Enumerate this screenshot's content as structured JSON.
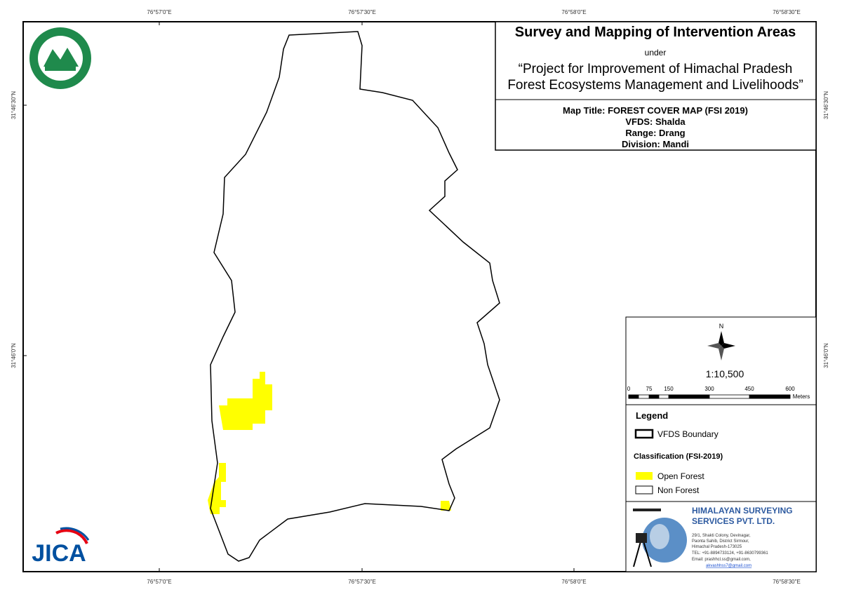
{
  "graticule": {
    "top": [
      "76°57'0\"E",
      "76°57'30\"E",
      "76°58'0\"E",
      "76°58'30\"E"
    ],
    "bottom": [
      "76°57'0\"E",
      "76°57'30\"E",
      "76°58'0\"E",
      "76°58'30\"E"
    ],
    "left": [
      "31°46'30\"N",
      "31°46'0\"N"
    ],
    "right": [
      "31°46'30\"N",
      "31°46'0\"N"
    ]
  },
  "header": {
    "title": "Survey and Mapping of Intervention Areas",
    "under": "under",
    "project": [
      "“Project for Improvement of Himachal Pradesh",
      "Forest Ecosystems Management and Livelihoods”"
    ]
  },
  "map_info": {
    "map_title": "Map Title: FOREST COVER MAP (FSI 2019)",
    "vfds": "VFDS: Shalda",
    "range": "Range: Drang",
    "division": "Division: Mandi"
  },
  "north": "N",
  "scale": "1:10,500",
  "scale_bar": {
    "ticks": [
      "0",
      "75",
      "150",
      "300",
      "450",
      "600"
    ],
    "unit": "Meters"
  },
  "legend": {
    "title": "Legend",
    "boundary": "VFDS Boundary",
    "classification": "Classification (FSI-2019)",
    "items": [
      "Open Forest",
      "Non Forest"
    ]
  },
  "logos": {
    "jica": "JICA"
  },
  "company": {
    "name": [
      "HIMALAYAN SURVEYING",
      "SERVICES PVT. LTD."
    ],
    "address": [
      "29/1, Shakti Colony, Devinagar,",
      "Paonta Sahib, District Sirmour,",
      "Himachal Pradesh-173025",
      "TEL: +91-8894733124, +91-8630799361",
      "Email: prashhcl.ss@gmail.com,",
      "akvashhss7@gmail.com"
    ]
  }
}
